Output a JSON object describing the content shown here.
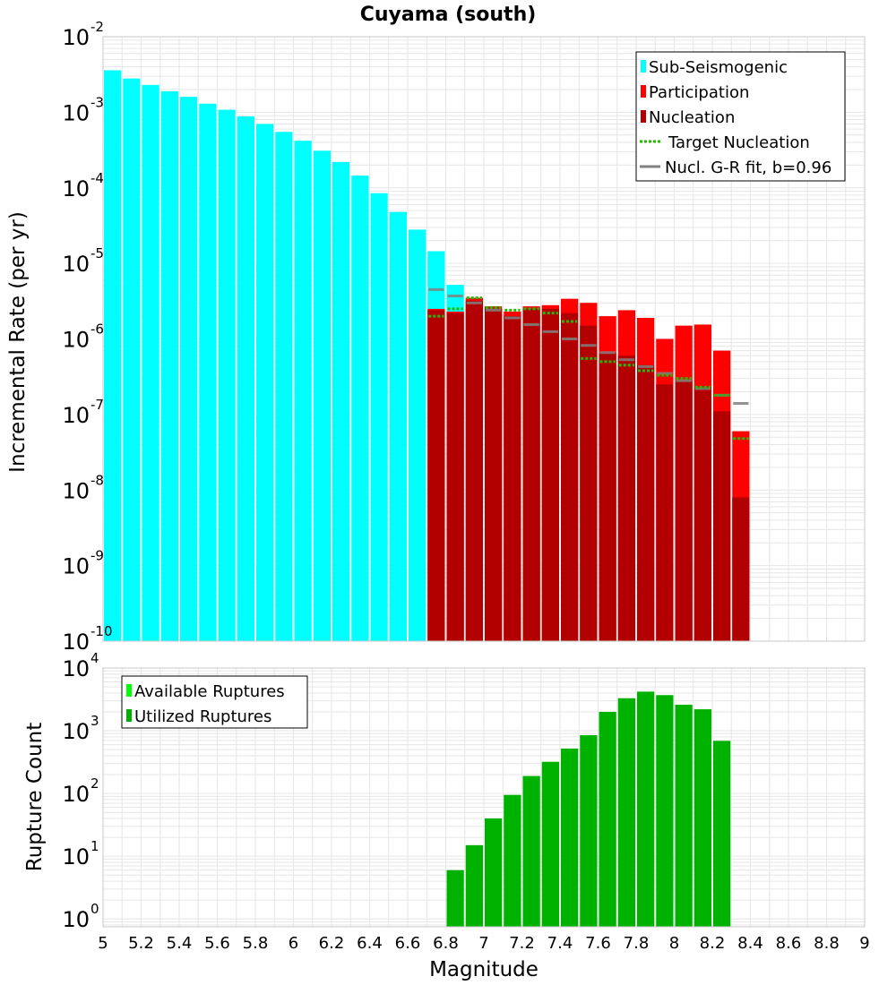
{
  "title": "Cuyama (south)",
  "colors": {
    "sub_seismogenic": "#00ffff",
    "participation": "#ff0000",
    "nucleation": "#b20000",
    "target_nucleation": "#22bb00",
    "gr_fit": "#808080",
    "available": "#00ff00",
    "utilized": "#00b200",
    "grid": "#e6e6e6"
  },
  "chart_data": [
    {
      "type": "bar",
      "ylabel": "Incremental Rate (per yr)",
      "xlim": [
        5,
        9
      ],
      "ylim": [
        1e-10,
        0.01
      ],
      "yscale": "log",
      "grid": true,
      "legend_position": "top-right",
      "y_ticks": [
        {
          "base": "10",
          "exp": "-2",
          "value": 0.01
        },
        {
          "base": "10",
          "exp": "-3",
          "value": 0.001
        },
        {
          "base": "10",
          "exp": "-4",
          "value": 0.0001
        },
        {
          "base": "10",
          "exp": "-5",
          "value": 1e-05
        },
        {
          "base": "10",
          "exp": "-6",
          "value": 1e-06
        },
        {
          "base": "10",
          "exp": "-7",
          "value": 1e-07
        },
        {
          "base": "10",
          "exp": "-8",
          "value": 1e-08
        },
        {
          "base": "10",
          "exp": "-9",
          "value": 1e-09
        },
        {
          "base": "10",
          "exp": "-10",
          "value": 1e-10
        }
      ],
      "legend": [
        {
          "label": "Sub-Seismogenic",
          "kind": "box",
          "color": "#00ffff"
        },
        {
          "label": "Participation",
          "kind": "box",
          "color": "#ff0000"
        },
        {
          "label": "Nucleation",
          "kind": "box",
          "color": "#b20000"
        },
        {
          "label": "Target Nucleation",
          "kind": "dotted",
          "color": "#22bb00"
        },
        {
          "label": "Nucl. G-R fit, b=0.96",
          "kind": "line",
          "color": "#808080"
        }
      ],
      "bin_width": 0.1,
      "series": [
        {
          "name": "Sub-Seismogenic",
          "x": [
            5.05,
            5.15,
            5.25,
            5.35,
            5.45,
            5.55,
            5.65,
            5.75,
            5.85,
            5.95,
            6.05,
            6.15,
            6.25,
            6.35,
            6.45,
            6.55,
            6.65,
            6.75,
            6.85
          ],
          "values": [
            0.0036,
            0.0028,
            0.0023,
            0.0019,
            0.0016,
            0.0013,
            0.00108,
            0.00088,
            0.0007,
            0.00055,
            0.00042,
            0.00031,
            0.00022,
            0.000145,
            8.5e-05,
            4.8e-05,
            2.8e-05,
            1.45e-05,
            5.2e-06
          ]
        },
        {
          "name": "Participation",
          "x": [
            6.75,
            6.85,
            6.95,
            7.05,
            7.15,
            7.25,
            7.35,
            7.45,
            7.55,
            7.65,
            7.75,
            7.85,
            7.95,
            8.05,
            8.15,
            8.25,
            8.35
          ],
          "values": [
            2.5e-06,
            2.3e-06,
            3.5e-06,
            2.7e-06,
            2.3e-06,
            2.7e-06,
            2.8e-06,
            3.4e-06,
            3e-06,
            2e-06,
            2.4e-06,
            1.9e-06,
            1e-06,
            1.5e-06,
            1.55e-06,
            7e-07,
            6e-08
          ]
        },
        {
          "name": "Nucleation",
          "x": [
            6.75,
            6.85,
            6.95,
            7.05,
            7.15,
            7.25,
            7.35,
            7.45,
            7.55,
            7.65,
            7.75,
            7.85,
            7.95,
            8.05,
            8.15,
            8.25,
            8.35
          ],
          "values": [
            2.4e-06,
            2.2e-06,
            3.2e-06,
            2.5e-06,
            2e-06,
            2.5e-06,
            2.5e-06,
            2.2e-06,
            1.5e-06,
            6.5e-07,
            6e-07,
            4.5e-07,
            2.5e-07,
            2.8e-07,
            2.3e-07,
            1.1e-07,
            8e-09
          ]
        },
        {
          "name": "Target Nucleation",
          "x": [
            6.75,
            6.85,
            6.95,
            7.05,
            7.15,
            7.25,
            7.35,
            7.45,
            7.55,
            7.65,
            7.75,
            7.85,
            7.95,
            8.05,
            8.15,
            8.25,
            8.35
          ],
          "values": [
            2e-06,
            2.5e-06,
            3.5e-06,
            2.6e-06,
            2.4e-06,
            2.5e-06,
            2.2e-06,
            1.7e-06,
            5.5e-07,
            5e-07,
            4.5e-07,
            3.8e-07,
            3.3e-07,
            3e-07,
            2.3e-07,
            1.8e-07,
            4.8e-08
          ]
        },
        {
          "name": "Nucl. G-R fit, b=0.96",
          "x": [
            6.75,
            6.85,
            6.95,
            7.05,
            7.15,
            7.25,
            7.35,
            7.45,
            7.55,
            7.65,
            7.75,
            7.85,
            7.95,
            8.05,
            8.15,
            8.25,
            8.35
          ],
          "values": [
            4.5e-06,
            3.7e-06,
            3e-06,
            2.4e-06,
            1.9e-06,
            1.55e-06,
            1.25e-06,
            1e-06,
            8.2e-07,
            6.6e-07,
            5.3e-07,
            4.3e-07,
            3.5e-07,
            2.8e-07,
            2.2e-07,
            1.8e-07,
            1.4e-07
          ]
        }
      ]
    },
    {
      "type": "bar",
      "xlabel": "Magnitude",
      "ylabel": "Rupture Count",
      "xlim": [
        5,
        9
      ],
      "ylim": [
        0.75,
        10000
      ],
      "yscale": "log",
      "grid": true,
      "legend_position": "top-left",
      "x_ticks": [
        "5",
        "5.2",
        "5.4",
        "5.6",
        "5.8",
        "6",
        "6.2",
        "6.4",
        "6.6",
        "6.8",
        "7",
        "7.2",
        "7.4",
        "7.6",
        "7.8",
        "8",
        "8.2",
        "8.4",
        "8.6",
        "8.8",
        "9"
      ],
      "y_ticks": [
        {
          "base": "10",
          "exp": "4",
          "value": 10000
        },
        {
          "base": "10",
          "exp": "3",
          "value": 1000
        },
        {
          "base": "10",
          "exp": "2",
          "value": 100
        },
        {
          "base": "10",
          "exp": "1",
          "value": 10
        },
        {
          "base": "10",
          "exp": "0",
          "value": 1
        }
      ],
      "legend": [
        {
          "label": "Available Ruptures",
          "kind": "box",
          "color": "#00ff00"
        },
        {
          "label": "Utilized Ruptures",
          "kind": "box",
          "color": "#00b200"
        }
      ],
      "bin_width": 0.1,
      "series": [
        {
          "name": "Utilized Ruptures",
          "x": [
            6.85,
            6.95,
            7.05,
            7.15,
            7.25,
            7.35,
            7.45,
            7.55,
            7.65,
            7.75,
            7.85,
            7.95,
            8.05,
            8.15,
            8.25
          ],
          "values": [
            6,
            15,
            40,
            95,
            190,
            320,
            520,
            850,
            2000,
            3300,
            4200,
            3700,
            2600,
            2200,
            690
          ]
        }
      ]
    }
  ]
}
